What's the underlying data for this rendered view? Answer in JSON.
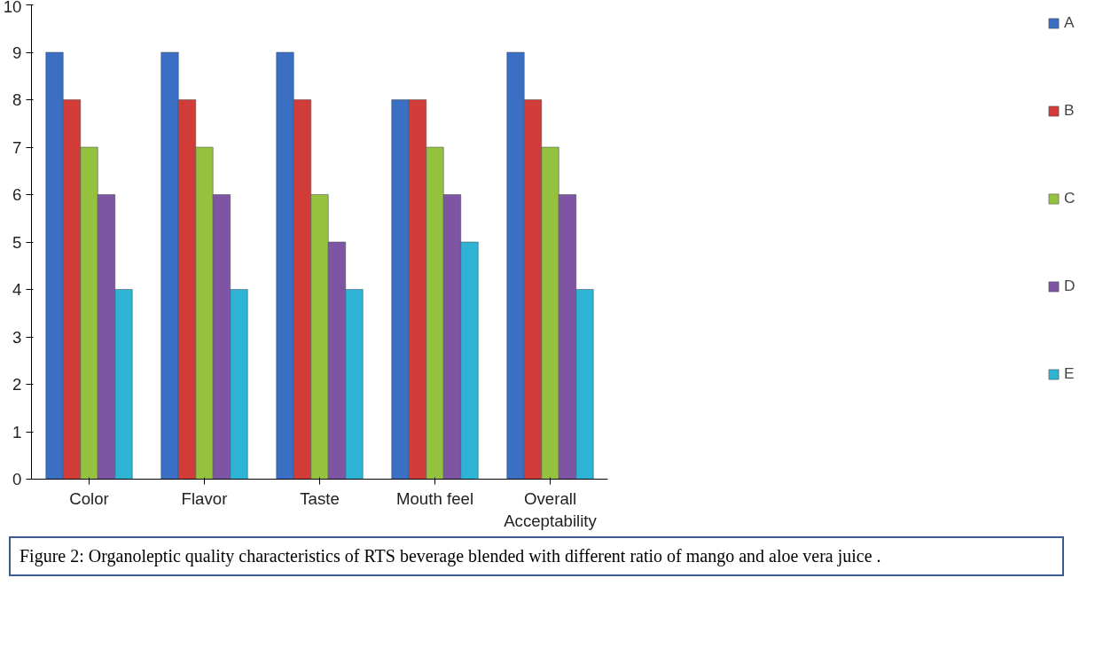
{
  "chart_data": {
    "type": "bar",
    "categories": [
      "Color",
      "Flavor",
      "Taste",
      "Mouth feel",
      "Overall Acceptability"
    ],
    "series": [
      {
        "name": "A",
        "color": "#3a6fc4",
        "values": [
          9,
          9,
          9,
          8,
          9
        ]
      },
      {
        "name": "B",
        "color": "#d13b38",
        "values": [
          8,
          8,
          8,
          8,
          8
        ]
      },
      {
        "name": "C",
        "color": "#94c23e",
        "values": [
          7,
          7,
          6,
          7,
          7
        ]
      },
      {
        "name": "D",
        "color": "#7e55a3",
        "values": [
          6,
          6,
          5,
          6,
          6
        ]
      },
      {
        "name": "E",
        "color": "#2eb3d4",
        "values": [
          4,
          4,
          4,
          5,
          4
        ]
      }
    ],
    "ylim": [
      0,
      10
    ],
    "yticks": [
      0,
      1,
      2,
      3,
      4,
      5,
      6,
      7,
      8,
      9,
      10
    ],
    "grid": false,
    "legend": "right",
    "annotations": [
      "Figure 2: Organoleptic quality characteristics of RTS beverage blended with different ratio of mango and aloe vera juice ."
    ]
  }
}
